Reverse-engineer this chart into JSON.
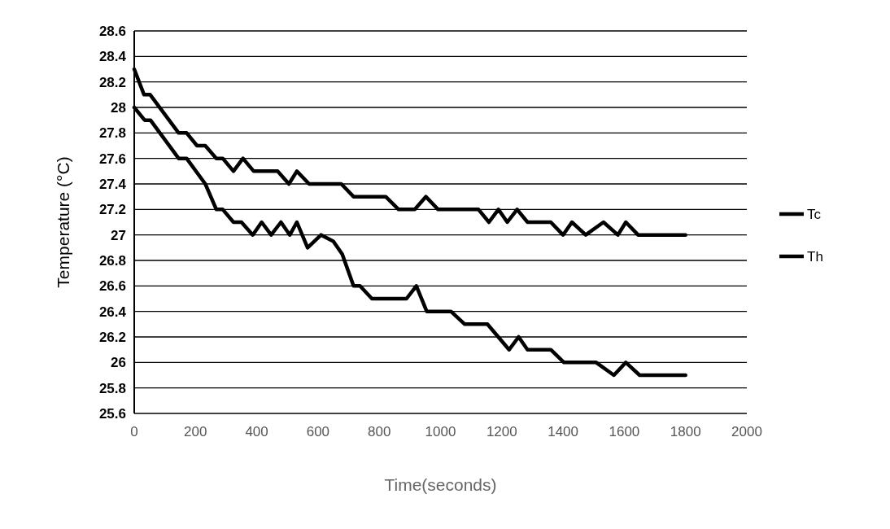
{
  "chart_data": {
    "type": "line",
    "xlabel": "Time(seconds)",
    "ylabel": "Temperature (°C)",
    "xlim": [
      0,
      2000
    ],
    "xticks": [
      0,
      200,
      400,
      600,
      800,
      1000,
      1200,
      1400,
      1600,
      1800,
      2000
    ],
    "ylim": [
      25.6,
      28.6
    ],
    "yticks": [
      25.6,
      25.8,
      26,
      26.2,
      26.4,
      26.6,
      26.8,
      27,
      27.2,
      27.4,
      27.6,
      27.8,
      28,
      28.2,
      28.4,
      28.6
    ],
    "grid": "y",
    "legend": "right",
    "line_style": "solid",
    "series": [
      {
        "name": "Tc",
        "color": "#000000",
        "x": [
          0,
          32,
          52,
          145,
          171,
          205,
          232,
          268,
          289,
          324,
          355,
          390,
          468,
          505,
          531,
          571,
          676,
          716,
          821,
          863,
          916,
          952,
          992,
          1124,
          1158,
          1189,
          1218,
          1250,
          1284,
          1360,
          1400,
          1429,
          1474,
          1532,
          1579,
          1605,
          1645,
          1800
        ],
        "values": [
          28.3,
          28.1,
          28.1,
          27.8,
          27.8,
          27.7,
          27.7,
          27.6,
          27.6,
          27.5,
          27.6,
          27.5,
          27.5,
          27.4,
          27.5,
          27.4,
          27.4,
          27.3,
          27.3,
          27.2,
          27.2,
          27.3,
          27.2,
          27.2,
          27.1,
          27.2,
          27.1,
          27.2,
          27.1,
          27.1,
          27.0,
          27.1,
          27.0,
          27.1,
          27.0,
          27.1,
          27.0,
          27.0
        ]
      },
      {
        "name": "Th",
        "color": "#000000",
        "x": [
          0,
          34,
          53,
          145,
          171,
          232,
          268,
          289,
          324,
          350,
          387,
          416,
          447,
          479,
          508,
          531,
          566,
          610,
          650,
          679,
          716,
          737,
          776,
          889,
          921,
          955,
          1034,
          1079,
          1153,
          1224,
          1255,
          1284,
          1360,
          1403,
          1508,
          1566,
          1605,
          1650,
          1800
        ],
        "values": [
          28.0,
          27.9,
          27.9,
          27.6,
          27.6,
          27.4,
          27.2,
          27.2,
          27.1,
          27.1,
          27.0,
          27.1,
          27.0,
          27.1,
          27.0,
          27.1,
          26.9,
          27.0,
          26.95,
          26.85,
          26.6,
          26.6,
          26.5,
          26.5,
          26.6,
          26.4,
          26.4,
          26.3,
          26.3,
          26.1,
          26.2,
          26.1,
          26.1,
          26.0,
          26.0,
          25.9,
          26.0,
          25.9,
          25.9
        ]
      }
    ]
  }
}
